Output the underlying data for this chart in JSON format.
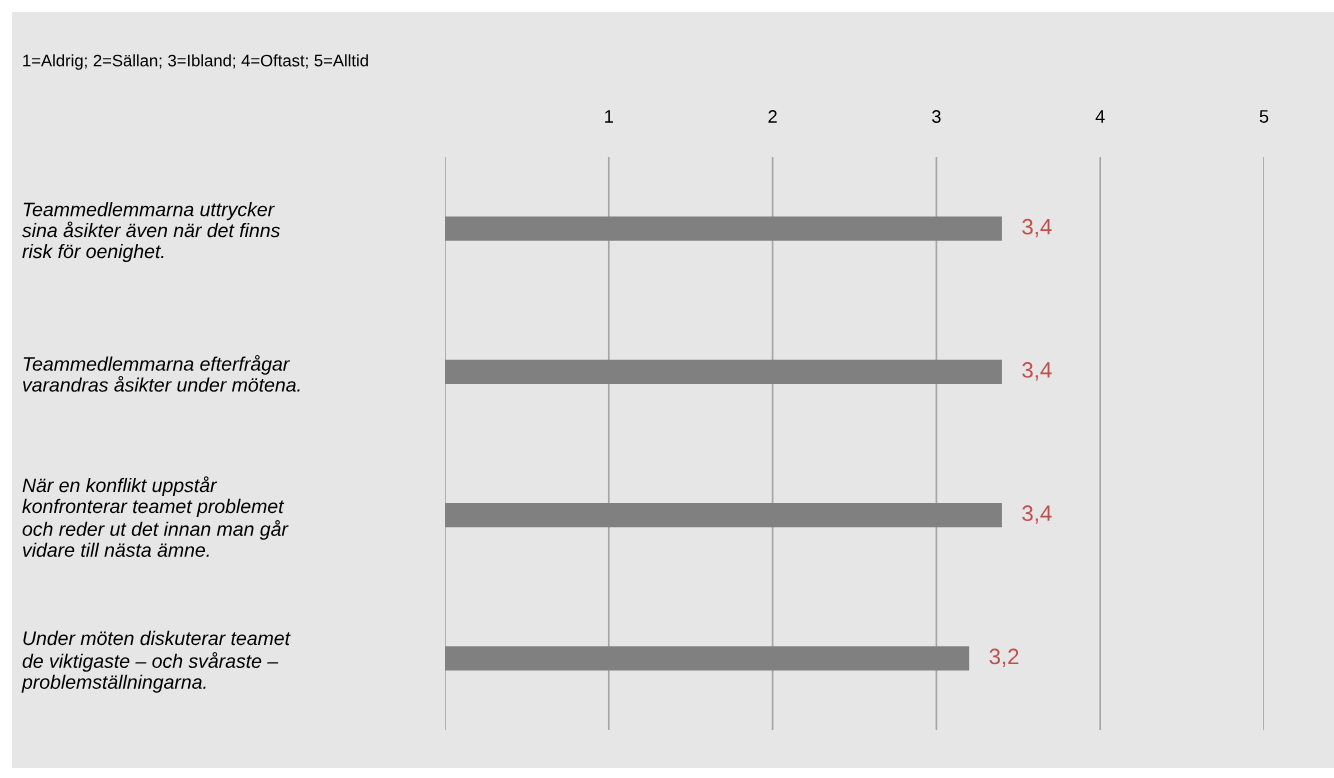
{
  "chart_data": {
    "type": "bar",
    "orientation": "horizontal",
    "subtitle": "1=Aldrig; 2=Sällan; 3=Ibland; 4=Oftast; 5=Alltid",
    "categories": [
      "Teammedlemmarna uttrycker\nsina åsikter även när det finns\nrisk för oenighet.",
      "Teammedlemmarna efterfrågar\nvarandras åsikter under mötena.",
      "När en konflikt uppstår\nkonfronterar teamet problemet\noch reder ut det innan man går\nvidare till nästa ämne.",
      "Under möten diskuterar teamet\nde viktigaste – och svåraste –\nproblemställningarna."
    ],
    "values": [
      3.4,
      3.4,
      3.4,
      3.2
    ],
    "value_labels": [
      "3,4",
      "3,4",
      "3,4",
      "3,2"
    ],
    "color": "#808080",
    "xlim": [
      0,
      5
    ],
    "xticks": [
      {
        "value": 0,
        "label": null
      },
      1,
      2,
      3,
      4,
      5
    ],
    "grid": "x",
    "legend": false
  }
}
